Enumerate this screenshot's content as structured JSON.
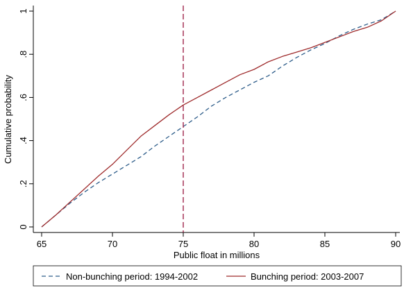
{
  "chart_data": {
    "type": "line",
    "title": "",
    "xlabel": "Public float in millions",
    "ylabel": "Cumulative probability",
    "xlim": [
      65,
      90
    ],
    "ylim": [
      0,
      1
    ],
    "x_ticks": [
      65,
      70,
      75,
      80,
      85,
      90
    ],
    "x_tick_labels": [
      "65",
      "70",
      "75",
      "80",
      "85",
      "90"
    ],
    "y_ticks": [
      0,
      0.2,
      0.4,
      0.6,
      0.8,
      1
    ],
    "y_tick_labels": [
      "0",
      ".2",
      ".4",
      ".6",
      ".8",
      "1"
    ],
    "grid": false,
    "legend_position": "bottom",
    "reference_line": {
      "x": 75,
      "color": "#a0244a",
      "style": "dashed"
    },
    "series": [
      {
        "name": "Non-bunching period: 1994-2002",
        "color": "#2e5d8a",
        "style": "dashed",
        "x": [
          65,
          66,
          67,
          68,
          69,
          70,
          71,
          72,
          73,
          74,
          75,
          76,
          77,
          78,
          79,
          80,
          81,
          82,
          83,
          84,
          85,
          86,
          87,
          88,
          89,
          90
        ],
        "y": [
          0.0,
          0.055,
          0.11,
          0.16,
          0.205,
          0.245,
          0.285,
          0.325,
          0.375,
          0.42,
          0.465,
          0.51,
          0.56,
          0.6,
          0.635,
          0.67,
          0.7,
          0.745,
          0.785,
          0.82,
          0.85,
          0.885,
          0.915,
          0.94,
          0.96,
          1.0
        ]
      },
      {
        "name": "Bunching period: 2003-2007",
        "color": "#9e2a2b",
        "style": "solid",
        "x": [
          65,
          66,
          67,
          68,
          69,
          70,
          71,
          72,
          73,
          74,
          75,
          76,
          77,
          78,
          79,
          80,
          81,
          82,
          83,
          84,
          85,
          86,
          87,
          88,
          89,
          90
        ],
        "y": [
          0.0,
          0.055,
          0.115,
          0.175,
          0.235,
          0.29,
          0.355,
          0.42,
          0.47,
          0.52,
          0.565,
          0.6,
          0.635,
          0.67,
          0.705,
          0.73,
          0.765,
          0.79,
          0.81,
          0.83,
          0.855,
          0.88,
          0.905,
          0.925,
          0.955,
          1.0
        ]
      }
    ]
  }
}
